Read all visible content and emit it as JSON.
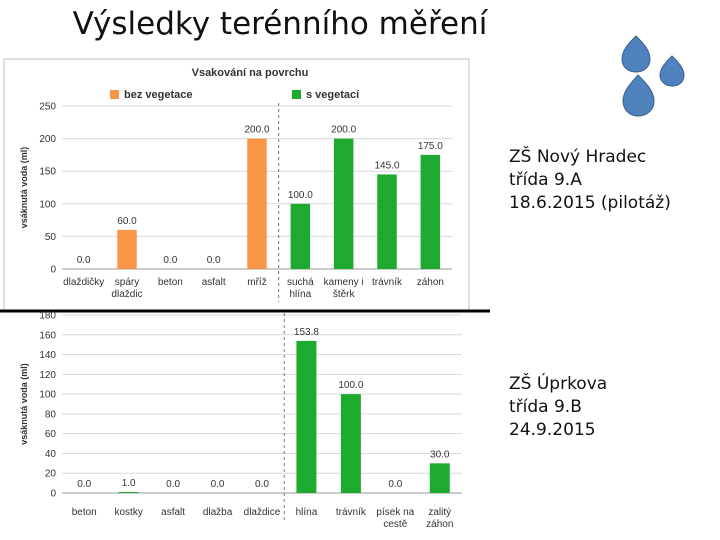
{
  "title": "Výsledky terénního měření",
  "info": [
    {
      "school": "ZŠ  Nový Hradec",
      "class": "třída 9.A",
      "date": "18.6.2015 (pilotáž)"
    },
    {
      "school": "ZŠ  Úprkova",
      "class": "třída 9.B",
      "date": "24.9.2015"
    }
  ],
  "colors": {
    "orange": "#f79646",
    "green": "#1eaa2f",
    "drop": "#4f81bd"
  },
  "icons": [
    "water-drop-icon",
    "water-drop-icon",
    "water-drop-icon"
  ],
  "chart_data": [
    {
      "type": "bar",
      "title": "Vsakování na povrchu",
      "ylabel": "vsáknutá voda (ml)",
      "xlabel": "",
      "ylim": [
        0,
        250
      ],
      "yticks": [
        0,
        50,
        100,
        150,
        200,
        250
      ],
      "grid": true,
      "legend": "top",
      "categories": [
        "dlaždičky",
        "spáry dlaždic",
        "beton",
        "asfalt",
        "mříž",
        "suchá hlína",
        "kameny i štěrk",
        "trávník",
        "záhon"
      ],
      "values": [
        0.0,
        60.0,
        0.0,
        0.0,
        200.0,
        100.0,
        200.0,
        145.0,
        175.0
      ],
      "value_labels": [
        "0.0",
        "60.0",
        "0.0",
        "0.0",
        "200.0",
        "100.0",
        "200.0",
        "145.0",
        "175.0"
      ],
      "series": [
        {
          "name": "bez vegetace",
          "color": "#f79646",
          "indices": [
            0,
            1,
            2,
            3,
            4
          ]
        },
        {
          "name": "s vegetací",
          "color": "#1eaa2f",
          "indices": [
            5,
            6,
            7,
            8
          ]
        }
      ]
    },
    {
      "type": "bar",
      "ylabel": "vsáknutá voda (ml)",
      "xlabel": "",
      "ylim": [
        0,
        180
      ],
      "yticks": [
        0,
        20,
        40,
        60,
        80,
        100,
        120,
        140,
        160,
        180
      ],
      "grid": true,
      "categories": [
        "beton",
        "kostky",
        "asfalt",
        "dlažba",
        "dlaždice",
        "hlína",
        "trávník",
        "písek na cestě",
        "zalitý záhon"
      ],
      "values": [
        0.0,
        1.0,
        0.0,
        0.0,
        0.0,
        153.8,
        100.0,
        0.0,
        30.0
      ],
      "value_labels": [
        "0.0",
        "1.0",
        "0.0",
        "0.0",
        "0.0",
        "153.8",
        "100.0",
        "0.0",
        "30.0"
      ],
      "series": [
        {
          "name": "",
          "color": "#1eaa2f",
          "indices": [
            0,
            1,
            2,
            3,
            4,
            5,
            6,
            7,
            8
          ]
        }
      ]
    }
  ]
}
